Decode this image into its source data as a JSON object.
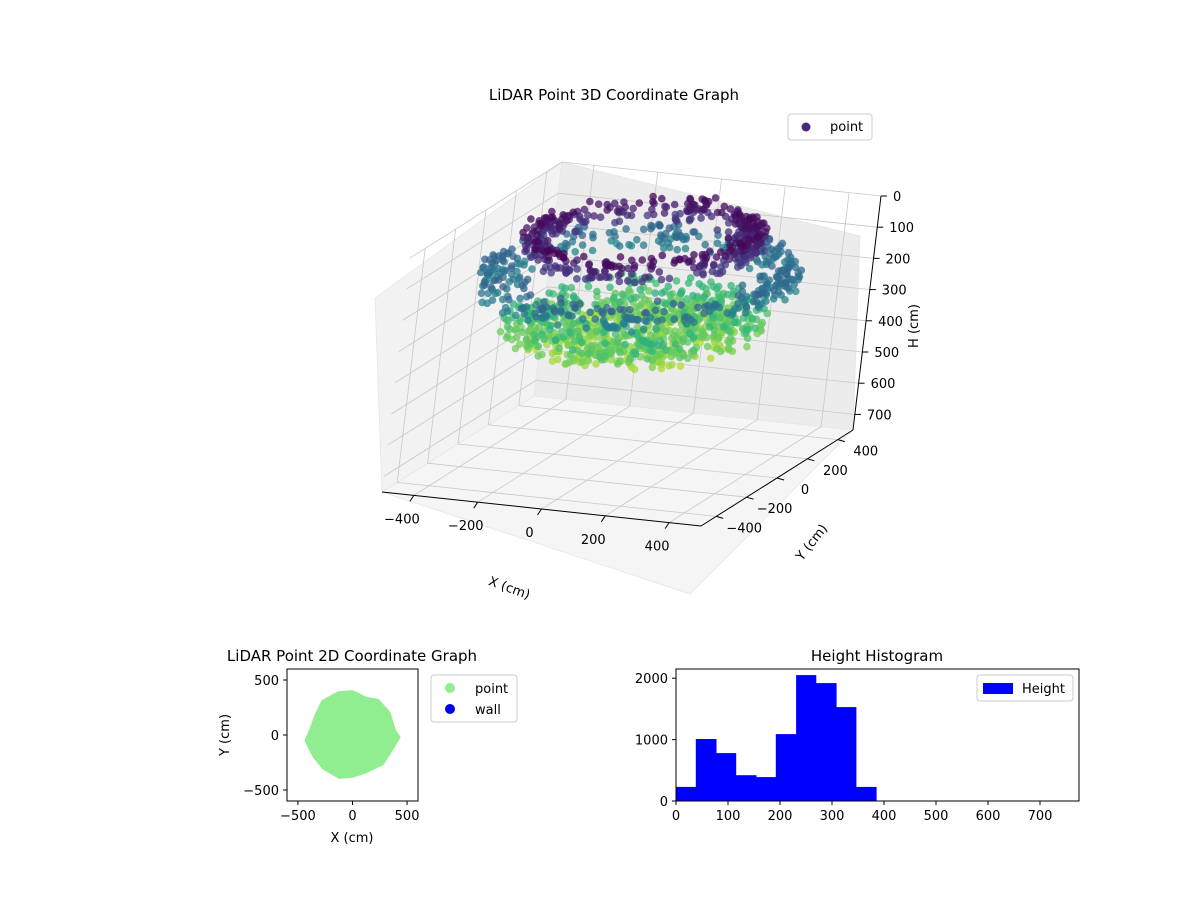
{
  "colors": {
    "point_3d_legend": "#482878",
    "point_2d": "#90ee90",
    "wall_2d": "#0000ee",
    "histogram": "#0000ff",
    "pane": "#f2f2f2"
  },
  "chart_data": [
    {
      "id": "lidar-3d",
      "type": "scatter",
      "title": "LiDAR Point 3D Coordinate Graph",
      "xlabel": "X (cm)",
      "ylabel": "Y (cm)",
      "zlabel": "H (cm)",
      "xlim": [
        -500,
        500
      ],
      "ylim": [
        -500,
        500
      ],
      "zlim": [
        0,
        750
      ],
      "z_inverted": true,
      "x_ticks": [
        "−400",
        "−200",
        "0",
        "200",
        "400"
      ],
      "y_ticks": [
        "−400",
        "−200",
        "0",
        "200",
        "400"
      ],
      "z_ticks": [
        "0",
        "100",
        "200",
        "300",
        "400",
        "500",
        "600",
        "700"
      ],
      "colormap": "viridis",
      "legend": {
        "entries": [
          "point"
        ],
        "placement": "top-right"
      },
      "series": [
        {
          "name": "point",
          "rings": [
            {
              "h": 40,
              "r_min": 250,
              "r_max": 350
            },
            {
              "h": 160,
              "r_min": 320,
              "r_max": 460
            },
            {
              "h": 300,
              "r_min": 100,
              "r_max": 380
            },
            {
              "h": 340,
              "r_min": 0,
              "r_max": 300
            }
          ]
        }
      ],
      "grid": true
    },
    {
      "id": "lidar-2d",
      "type": "scatter",
      "title": "LiDAR Point 2D Coordinate Graph",
      "xlabel": "X (cm)",
      "ylabel": "Y (cm)",
      "xlim": [
        -600,
        600
      ],
      "ylim": [
        -600,
        600
      ],
      "x_ticks": [
        -500,
        0,
        500
      ],
      "y_ticks": [
        -500,
        0,
        500
      ],
      "x_tick_labels": [
        "−500",
        "0",
        "500"
      ],
      "y_tick_labels": [
        "−500",
        "0",
        "500"
      ],
      "legend": {
        "entries": [
          "point",
          "wall"
        ],
        "placement": "outside-right"
      },
      "series": [
        {
          "name": "point",
          "outline": [
            [
              380,
              40
            ],
            [
              330,
              200
            ],
            [
              230,
              310
            ],
            [
              120,
              330
            ],
            [
              0,
              390
            ],
            [
              -130,
              380
            ],
            [
              -270,
              300
            ],
            [
              -330,
              180
            ],
            [
              -380,
              40
            ],
            [
              -420,
              -50
            ],
            [
              -350,
              -190
            ],
            [
              -260,
              -300
            ],
            [
              -120,
              -380
            ],
            [
              0,
              -370
            ],
            [
              120,
              -330
            ],
            [
              270,
              -260
            ],
            [
              360,
              -120
            ],
            [
              420,
              -20
            ]
          ]
        },
        {
          "name": "wall",
          "outline": []
        }
      ],
      "grid": false
    },
    {
      "id": "height-histogram",
      "type": "bar",
      "title": "Height Histogram",
      "xlabel": "",
      "ylabel": "",
      "xlim": [
        0,
        775
      ],
      "ylim": [
        0,
        2150
      ],
      "x_ticks": [
        0,
        100,
        200,
        300,
        400,
        500,
        600,
        700
      ],
      "y_ticks": [
        0,
        1000,
        2000
      ],
      "bins": [
        [
          0,
          38,
          230
        ],
        [
          38,
          77,
          1010
        ],
        [
          77,
          115,
          780
        ],
        [
          115,
          154,
          420
        ],
        [
          154,
          192,
          390
        ],
        [
          192,
          231,
          1090
        ],
        [
          231,
          269,
          2050
        ],
        [
          269,
          308,
          1920
        ],
        [
          308,
          346,
          1530
        ],
        [
          346,
          385,
          230
        ],
        [
          385,
          423,
          0
        ],
        [
          423,
          462,
          0
        ],
        [
          462,
          500,
          0
        ],
        [
          500,
          539,
          0
        ],
        [
          539,
          577,
          0
        ],
        [
          577,
          616,
          0
        ],
        [
          616,
          654,
          0
        ],
        [
          654,
          693,
          0
        ],
        [
          693,
          731,
          0
        ],
        [
          731,
          770,
          0
        ]
      ],
      "legend": {
        "entries": [
          "Height"
        ],
        "placement": "top-right"
      },
      "grid": false
    }
  ]
}
